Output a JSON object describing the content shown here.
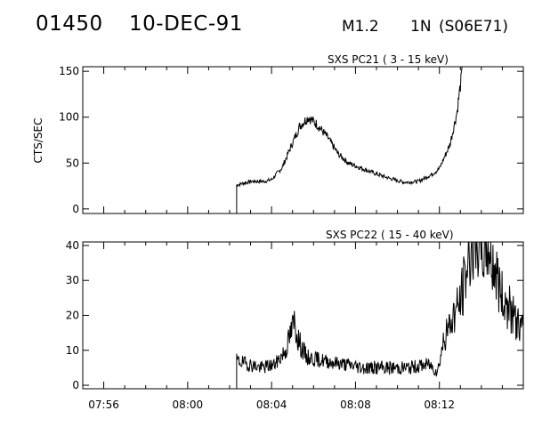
{
  "header": {
    "event_id": "01450",
    "date": "10-DEC-91",
    "flare_class": "M1.2",
    "importance": "1N",
    "location": "(S06E71)"
  },
  "chart_data": [
    {
      "type": "line",
      "title": "SXS PC21  (  3 - 15 keV)",
      "ylabel": "CTS/SEC",
      "xlim": [
        "07:55",
        "08:16"
      ],
      "ylim": [
        -5,
        155
      ],
      "yticks": [
        0,
        50,
        100,
        150
      ],
      "grid": false,
      "series": [
        {
          "points": [
            [
              "08:02:20",
              26
            ],
            [
              "08:03:00",
              30
            ],
            [
              "08:03:40",
              30
            ],
            [
              "08:04:00",
              32
            ],
            [
              "08:04:30",
              45
            ],
            [
              "08:05:00",
              72
            ],
            [
              "08:05:20",
              90
            ],
            [
              "08:05:45",
              100
            ],
            [
              "08:06:10",
              92
            ],
            [
              "08:06:40",
              78
            ],
            [
              "08:07:10",
              60
            ],
            [
              "08:07:40",
              50
            ],
            [
              "08:08:20",
              44
            ],
            [
              "08:09:00",
              38
            ],
            [
              "08:09:40",
              33
            ],
            [
              "08:10:20",
              29
            ],
            [
              "08:11:00",
              30
            ],
            [
              "08:11:40",
              38
            ],
            [
              "08:12:00",
              44
            ],
            [
              "08:12:30",
              70
            ],
            [
              "08:12:50",
              105
            ],
            [
              "08:13:05",
              150
            ]
          ]
        }
      ]
    },
    {
      "type": "line",
      "title": "SXS PC22  ( 15 - 40 keV)",
      "ylabel": "",
      "xlim": [
        "07:55",
        "08:16"
      ],
      "ylim": [
        -1,
        41
      ],
      "yticks": [
        0,
        10,
        20,
        30,
        40
      ],
      "xticks": [
        "07:56",
        "08:00",
        "08:04",
        "08:08",
        "08:12"
      ],
      "grid": false,
      "series": [
        {
          "points": [
            [
              "08:02:20",
              7
            ],
            [
              "08:03:30",
              5
            ],
            [
              "08:04:10",
              6
            ],
            [
              "08:04:40",
              10
            ],
            [
              "08:05:05",
              18
            ],
            [
              "08:05:20",
              12
            ],
            [
              "08:05:40",
              8
            ],
            [
              "08:06:30",
              7
            ],
            [
              "08:07:30",
              6
            ],
            [
              "08:08:30",
              5
            ],
            [
              "08:09:30",
              5
            ],
            [
              "08:10:30",
              5
            ],
            [
              "08:11:30",
              6
            ],
            [
              "08:11:55",
              4
            ],
            [
              "08:12:10",
              12
            ],
            [
              "08:12:40",
              20
            ],
            [
              "08:13:00",
              24
            ],
            [
              "08:13:15",
              32
            ],
            [
              "08:13:30",
              40
            ],
            [
              "08:14:20",
              40
            ],
            [
              "08:14:40",
              33
            ],
            [
              "08:15:00",
              25
            ],
            [
              "08:15:20",
              22
            ],
            [
              "08:15:40",
              18
            ],
            [
              "08:16:00",
              16
            ]
          ]
        }
      ]
    }
  ]
}
